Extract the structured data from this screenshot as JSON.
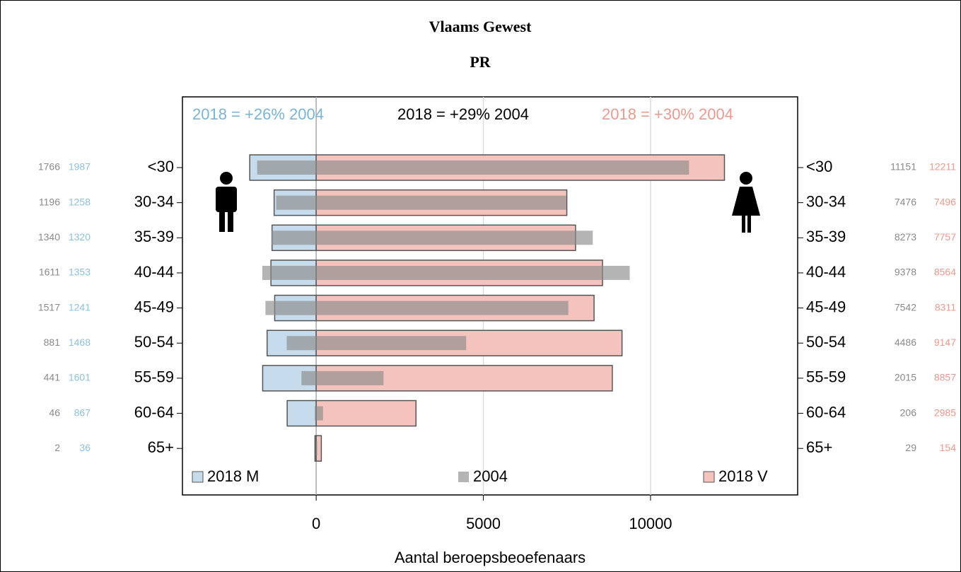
{
  "chart_data": {
    "type": "bar",
    "title": "Vlaams Gewest",
    "subtitle": "PR",
    "x_label": "Aantal beroepsbeoefenaars",
    "annotations": [
      {
        "text": "2018 =  +26% 2004",
        "color": "#7ab4d6"
      },
      {
        "text": "2018 =  +29% 2004",
        "color": "#000000"
      },
      {
        "text": "2018 =  +30% 2004",
        "color": "#eb9a91"
      }
    ],
    "categories": [
      "<30",
      "30-34",
      "35-39",
      "40-44",
      "45-49",
      "50-54",
      "55-59",
      "60-64",
      "65+"
    ],
    "series": [
      {
        "name": "2018 M",
        "color": "#c6dcec",
        "label_color": "#8fc1dd",
        "side": "left",
        "values": [
          1987,
          1258,
          1320,
          1353,
          1241,
          1468,
          1601,
          867,
          36
        ]
      },
      {
        "name": "2004",
        "color": "#8c8c8c",
        "label_color": "#8a8a8a",
        "left_values": [
          1766,
          1196,
          1340,
          1611,
          1517,
          881,
          441,
          46,
          2
        ],
        "right_values": [
          11151,
          7476,
          8273,
          9378,
          7542,
          4486,
          2015,
          206,
          29
        ]
      },
      {
        "name": "2018 V",
        "color": "#f5c3be",
        "label_color": "#eb9a91",
        "side": "right",
        "values": [
          12211,
          7496,
          7757,
          8564,
          8311,
          9147,
          8857,
          2985,
          154
        ]
      }
    ],
    "xlim": [
      -4000,
      14400
    ],
    "xticks": [
      0,
      5000,
      10000
    ],
    "grid": true
  }
}
